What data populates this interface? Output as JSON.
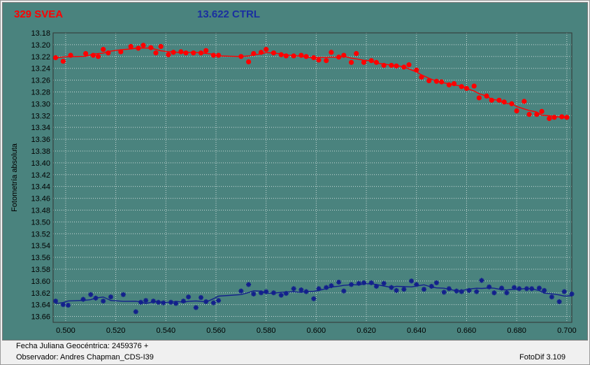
{
  "titles": {
    "left": "329 SVEA",
    "right": "13.622 CTRL"
  },
  "colors": {
    "panel_bg": "#4a837e",
    "plot_bg": "#4a837e",
    "series1": "#ff0000",
    "series2": "#13208c",
    "title_left": "#ff0000",
    "title_right": "#1a2fa0"
  },
  "footer": {
    "line1": "Fecha Juliana Geocéntrica: 2459376 +",
    "line2": "Observador: Andres Chapman_CDS-I39",
    "version": "FotoDif 3.109"
  },
  "chart_data": {
    "type": "scatter",
    "ylabel": "Fotometría absoluta",
    "xlabel": "",
    "xlim": [
      0.495,
      0.702
    ],
    "ylim": [
      13.18,
      13.67
    ],
    "y_inverted": true,
    "grid": true,
    "x_ticks": [
      "0.500",
      "0.520",
      "0.540",
      "0.560",
      "0.580",
      "0.600",
      "0.620",
      "0.640",
      "0.660",
      "0.680",
      "0.700"
    ],
    "y_ticks": [
      "13.18",
      "13.20",
      "13.22",
      "13.24",
      "13.26",
      "13.28",
      "13.30",
      "13.32",
      "13.34",
      "13.36",
      "13.38",
      "13.40",
      "13.42",
      "13.44",
      "13.46",
      "13.48",
      "13.50",
      "13.52",
      "13.54",
      "13.56",
      "13.58",
      "13.60",
      "13.62",
      "13.64",
      "13.66"
    ],
    "series": [
      {
        "name": "329 SVEA",
        "marker": "circle",
        "x": [
          0.496,
          0.499,
          0.502,
          0.508,
          0.511,
          0.513,
          0.515,
          0.517,
          0.522,
          0.526,
          0.529,
          0.531,
          0.534,
          0.536,
          0.538,
          0.541,
          0.543,
          0.546,
          0.548,
          0.551,
          0.554,
          0.556,
          0.559,
          0.561,
          0.57,
          0.573,
          0.575,
          0.578,
          0.58,
          0.583,
          0.586,
          0.588,
          0.591,
          0.594,
          0.596,
          0.599,
          0.601,
          0.604,
          0.606,
          0.609,
          0.611,
          0.614,
          0.616,
          0.619,
          0.622,
          0.624,
          0.627,
          0.63,
          0.632,
          0.635,
          0.637,
          0.64,
          0.642,
          0.645,
          0.648,
          0.65,
          0.653,
          0.655,
          0.658,
          0.66,
          0.663,
          0.665,
          0.668,
          0.67,
          0.673,
          0.675,
          0.678,
          0.68,
          0.683,
          0.685,
          0.688,
          0.69,
          0.693,
          0.695,
          0.698,
          0.7
        ],
        "y": [
          13.222,
          13.228,
          13.218,
          13.215,
          13.218,
          13.22,
          13.208,
          13.214,
          13.212,
          13.203,
          13.206,
          13.201,
          13.205,
          13.214,
          13.203,
          13.217,
          13.213,
          13.212,
          13.214,
          13.214,
          13.214,
          13.21,
          13.218,
          13.218,
          13.22,
          13.229,
          13.215,
          13.213,
          13.208,
          13.214,
          13.217,
          13.219,
          13.219,
          13.218,
          13.22,
          13.222,
          13.226,
          13.227,
          13.213,
          13.221,
          13.218,
          13.23,
          13.215,
          13.23,
          13.227,
          13.23,
          13.235,
          13.235,
          13.236,
          13.238,
          13.234,
          13.243,
          13.255,
          13.261,
          13.262,
          13.263,
          13.268,
          13.266,
          13.271,
          13.274,
          13.27,
          13.29,
          13.287,
          13.294,
          13.294,
          13.297,
          13.3,
          13.312,
          13.296,
          13.318,
          13.318,
          13.313,
          13.325,
          13.323,
          13.322,
          13.323
        ]
      },
      {
        "name": "13.622 CTRL",
        "marker": "star",
        "x": [
          0.496,
          0.499,
          0.501,
          0.507,
          0.51,
          0.512,
          0.515,
          0.518,
          0.523,
          0.528,
          0.53,
          0.532,
          0.535,
          0.537,
          0.539,
          0.542,
          0.544,
          0.547,
          0.549,
          0.552,
          0.554,
          0.556,
          0.559,
          0.561,
          0.57,
          0.573,
          0.575,
          0.578,
          0.58,
          0.583,
          0.586,
          0.588,
          0.591,
          0.594,
          0.596,
          0.599,
          0.601,
          0.604,
          0.606,
          0.609,
          0.611,
          0.614,
          0.617,
          0.619,
          0.622,
          0.624,
          0.627,
          0.63,
          0.632,
          0.635,
          0.638,
          0.64,
          0.643,
          0.646,
          0.648,
          0.651,
          0.653,
          0.656,
          0.658,
          0.661,
          0.664,
          0.666,
          0.669,
          0.671,
          0.674,
          0.676,
          0.679,
          0.681,
          0.684,
          0.686,
          0.689,
          0.691,
          0.694,
          0.697,
          0.699,
          0.702
        ],
        "y": [
          13.634,
          13.64,
          13.641,
          13.631,
          13.623,
          13.629,
          13.634,
          13.627,
          13.623,
          13.652,
          13.636,
          13.633,
          13.634,
          13.636,
          13.637,
          13.636,
          13.638,
          13.634,
          13.627,
          13.645,
          13.628,
          13.635,
          13.637,
          13.633,
          13.617,
          13.606,
          13.622,
          13.62,
          13.618,
          13.62,
          13.624,
          13.621,
          13.613,
          13.615,
          13.618,
          13.63,
          13.613,
          13.611,
          13.608,
          13.602,
          13.617,
          13.606,
          13.604,
          13.603,
          13.603,
          13.609,
          13.604,
          13.611,
          13.616,
          13.614,
          13.6,
          13.606,
          13.614,
          13.609,
          13.603,
          13.619,
          13.613,
          13.617,
          13.618,
          13.616,
          13.618,
          13.599,
          13.61,
          13.62,
          13.612,
          13.62,
          13.611,
          13.613,
          13.613,
          13.613,
          13.612,
          13.616,
          13.627,
          13.635,
          13.618,
          13.622
        ]
      }
    ]
  }
}
